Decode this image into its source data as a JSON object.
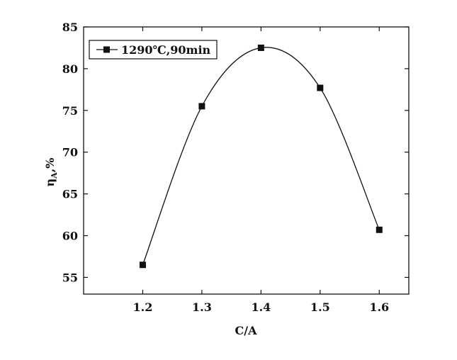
{
  "chart_data": {
    "type": "line",
    "x": [
      1.2,
      1.3,
      1.4,
      1.5,
      1.6
    ],
    "series": [
      {
        "name": "1290℃,90min",
        "values": [
          56.5,
          75.5,
          82.5,
          77.7,
          60.7
        ]
      }
    ],
    "xlabel": "C/A",
    "ylabel": "η",
    "ylabel_subscript": "A",
    "ylabel_unit": "%",
    "ylabel_separator": ",",
    "xlim": [
      1.1,
      1.65
    ],
    "ylim": [
      53,
      85
    ],
    "xticks": [
      "1.2",
      "1.3",
      "1.4",
      "1.5",
      "1.6"
    ],
    "yticks": [
      "55",
      "60",
      "65",
      "70",
      "75",
      "80",
      "85"
    ],
    "legend_position": "top-left",
    "grid": false,
    "marker": "square",
    "smooth": true,
    "colors": {
      "line": "#111111",
      "axis": "#111111",
      "background": "#ffffff"
    }
  }
}
